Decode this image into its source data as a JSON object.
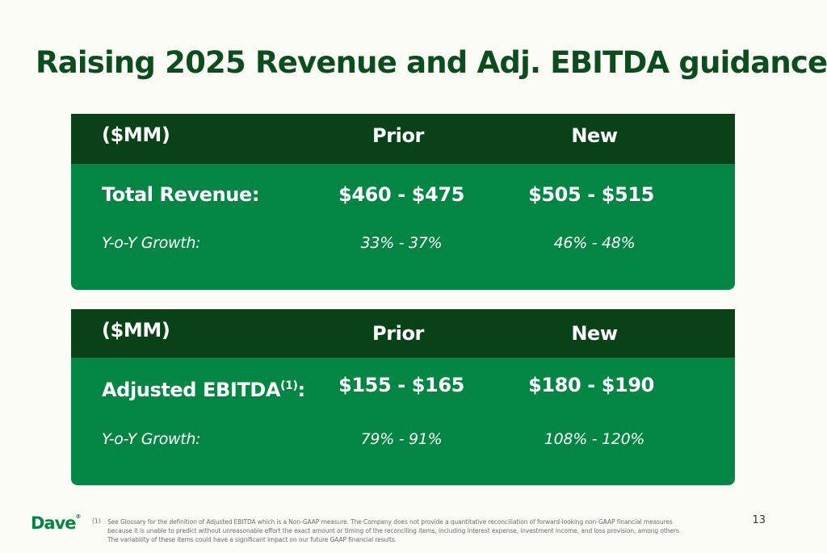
{
  "title": "Raising 2025 Revenue and Adj. EBITDA guidance",
  "revenue_card": {
    "header_label": "($MM)",
    "header_prior": "Prior",
    "header_new": "New",
    "row_label": "Total Revenue:",
    "prior_value": "$460 - $475",
    "new_value": "$505 - $515",
    "growth_label": "Y-o-Y Growth:",
    "prior_growth": "33% - 37%",
    "new_growth": "46% - 48%"
  },
  "ebitda_card": {
    "header_label": "($MM)",
    "header_prior": "Prior",
    "header_new": "New",
    "row_label": "Adjusted EBITDA",
    "row_label_sup": "(1)",
    "row_label_suffix": ":",
    "prior_value": "$155 - $165",
    "new_value": "$180 - $190",
    "growth_label": "Y-o-Y Growth:",
    "prior_growth": "79% - 91%",
    "new_growth": "108% - 120%"
  },
  "footer": {
    "logo": "Dave",
    "logo_mark": "®",
    "footnote_number": "(1)",
    "footnote_text": "See Glossary for the definition of Adjusted EBITDA which is a Non-GAAP measure. The Company does not provide a quantitative reconciliation of forward-looking non-GAAP financial measures because it is unable to predict without unreasonable effort the exact amount or timing of the reconciling items, including interest expense, investment income, and loss provision, among others. The variability of these items could have a significant impact on our future GAAP financial results.",
    "page_number": "13"
  },
  "colors": {
    "title": "#0b4d1c",
    "header_bg": "#0a4218",
    "card_bg": "#038643",
    "page_bg": "#fcfcf6",
    "logo": "#038643"
  }
}
